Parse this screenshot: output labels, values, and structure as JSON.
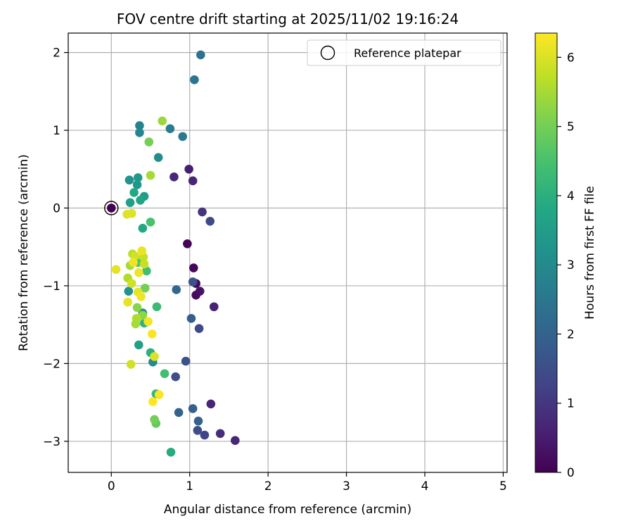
{
  "chart_data": {
    "type": "scatter",
    "title": "FOV centre drift starting at 2025/11/02 19:16:24",
    "xlabel": "Angular distance from reference (arcmin)",
    "ylabel": "Rotation from reference (arcmin)",
    "xlim": [
      -0.55,
      5.05
    ],
    "ylim": [
      -3.4,
      2.25
    ],
    "xticks": [
      0,
      1,
      2,
      3,
      4,
      5
    ],
    "xtick_labels": [
      "0",
      "1",
      "2",
      "3",
      "4",
      "5"
    ],
    "yticks": [
      2,
      1,
      0,
      -1,
      -2,
      -3
    ],
    "ytick_labels": [
      "2",
      "1",
      "0",
      "−1",
      "−2",
      "−3"
    ],
    "grid": true,
    "legend": {
      "label": "Reference platepar",
      "position": "top-right"
    },
    "reference_point": {
      "x": 0,
      "y": 0,
      "c": 0
    },
    "colorbar": {
      "label": "Hours from first FF file",
      "range": [
        0,
        6.35
      ],
      "ticks": [
        0,
        1,
        2,
        3,
        4,
        5,
        6
      ],
      "tick_labels": [
        "0",
        "1",
        "2",
        "3",
        "4",
        "5",
        "6"
      ],
      "colormap": "viridis"
    },
    "points": [
      {
        "x": 0.97,
        "y": -0.46,
        "c": 0.05
      },
      {
        "x": 1.05,
        "y": -0.77,
        "c": 0.1
      },
      {
        "x": 1.08,
        "y": -0.97,
        "c": 0.15
      },
      {
        "x": 1.08,
        "y": -1.12,
        "c": 0.2
      },
      {
        "x": 1.13,
        "y": -1.07,
        "c": 0.3
      },
      {
        "x": 0.99,
        "y": 0.5,
        "c": 0.55
      },
      {
        "x": 1.04,
        "y": 0.35,
        "c": 0.65
      },
      {
        "x": 0.8,
        "y": 0.4,
        "c": 0.7
      },
      {
        "x": 1.31,
        "y": -1.27,
        "c": 0.6
      },
      {
        "x": 1.27,
        "y": -2.52,
        "c": 0.65
      },
      {
        "x": 1.58,
        "y": -2.99,
        "c": 0.7
      },
      {
        "x": 1.39,
        "y": -2.9,
        "c": 0.8
      },
      {
        "x": 1.16,
        "y": -0.05,
        "c": 0.95
      },
      {
        "x": 1.26,
        "y": -0.17,
        "c": 1.4
      },
      {
        "x": 1.12,
        "y": -1.55,
        "c": 1.4
      },
      {
        "x": 1.19,
        "y": -2.92,
        "c": 1.3
      },
      {
        "x": 1.1,
        "y": -2.86,
        "c": 1.5
      },
      {
        "x": 1.04,
        "y": -0.95,
        "c": 1.6
      },
      {
        "x": 0.82,
        "y": -2.17,
        "c": 1.5
      },
      {
        "x": 0.95,
        "y": -1.97,
        "c": 1.55
      },
      {
        "x": 1.02,
        "y": -1.42,
        "c": 1.9
      },
      {
        "x": 1.04,
        "y": -2.58,
        "c": 1.9
      },
      {
        "x": 1.11,
        "y": -2.74,
        "c": 2.0
      },
      {
        "x": 0.86,
        "y": -2.63,
        "c": 2.0
      },
      {
        "x": 0.83,
        "y": -1.05,
        "c": 2.1
      },
      {
        "x": 1.14,
        "y": 1.97,
        "c": 2.4
      },
      {
        "x": 1.06,
        "y": 1.65,
        "c": 2.5
      },
      {
        "x": 0.91,
        "y": 0.92,
        "c": 2.6
      },
      {
        "x": 0.75,
        "y": 1.02,
        "c": 2.7
      },
      {
        "x": 0.36,
        "y": 1.06,
        "c": 2.8
      },
      {
        "x": 0.36,
        "y": 0.97,
        "c": 2.9
      },
      {
        "x": 0.6,
        "y": 0.65,
        "c": 3.1
      },
      {
        "x": 0.23,
        "y": 0.36,
        "c": 3.2
      },
      {
        "x": 0.33,
        "y": 0.3,
        "c": 3.3
      },
      {
        "x": 0.34,
        "y": 0.39,
        "c": 3.4
      },
      {
        "x": 0.42,
        "y": 0.15,
        "c": 3.5
      },
      {
        "x": 0.24,
        "y": 0.07,
        "c": 3.6
      },
      {
        "x": 0.37,
        "y": 0.1,
        "c": 3.7
      },
      {
        "x": 0.29,
        "y": 0.2,
        "c": 3.8
      },
      {
        "x": 0.53,
        "y": -1.98,
        "c": 3.0
      },
      {
        "x": 0.4,
        "y": -1.35,
        "c": 3.1
      },
      {
        "x": 0.22,
        "y": -1.07,
        "c": 3.2
      },
      {
        "x": 0.35,
        "y": -1.76,
        "c": 3.6
      },
      {
        "x": 0.4,
        "y": -0.26,
        "c": 3.8
      },
      {
        "x": 0.76,
        "y": -3.14,
        "c": 3.9
      },
      {
        "x": 0.5,
        "y": -1.86,
        "c": 4.0
      },
      {
        "x": 0.42,
        "y": -1.48,
        "c": 4.1
      },
      {
        "x": 0.57,
        "y": -2.39,
        "c": 4.2
      },
      {
        "x": 0.58,
        "y": -1.27,
        "c": 4.3
      },
      {
        "x": 0.68,
        "y": -2.13,
        "c": 4.4
      },
      {
        "x": 0.45,
        "y": -0.81,
        "c": 4.4
      },
      {
        "x": 0.5,
        "y": -0.18,
        "c": 4.5
      },
      {
        "x": 0.34,
        "y": -0.7,
        "c": 4.6
      },
      {
        "x": 0.57,
        "y": -2.77,
        "c": 4.8
      },
      {
        "x": 0.55,
        "y": -2.72,
        "c": 5.0
      },
      {
        "x": 0.48,
        "y": 0.85,
        "c": 5.0
      },
      {
        "x": 0.43,
        "y": -1.03,
        "c": 5.0
      },
      {
        "x": 0.33,
        "y": -1.28,
        "c": 5.2
      },
      {
        "x": 0.4,
        "y": -1.38,
        "c": 5.3
      },
      {
        "x": 0.65,
        "y": 1.12,
        "c": 5.4
      },
      {
        "x": 0.5,
        "y": 0.42,
        "c": 5.5
      },
      {
        "x": 0.24,
        "y": -0.74,
        "c": 5.5
      },
      {
        "x": 0.32,
        "y": -1.42,
        "c": 5.6
      },
      {
        "x": 0.31,
        "y": -1.49,
        "c": 5.5
      },
      {
        "x": 0.21,
        "y": -0.9,
        "c": 5.6
      },
      {
        "x": 0.27,
        "y": -0.59,
        "c": 5.7
      },
      {
        "x": 0.41,
        "y": -0.63,
        "c": 5.8
      },
      {
        "x": 0.42,
        "y": -0.72,
        "c": 5.8
      },
      {
        "x": 0.3,
        "y": -0.62,
        "c": 5.9
      },
      {
        "x": 0.26,
        "y": -0.97,
        "c": 5.9
      },
      {
        "x": 0.25,
        "y": -2.01,
        "c": 5.9
      },
      {
        "x": 0.55,
        "y": -1.91,
        "c": 6.0
      },
      {
        "x": 0.26,
        "y": -0.07,
        "c": 6.0
      },
      {
        "x": 0.2,
        "y": -0.08,
        "c": 6.05
      },
      {
        "x": 0.06,
        "y": -0.79,
        "c": 6.1
      },
      {
        "x": 0.21,
        "y": -1.21,
        "c": 6.1
      },
      {
        "x": 0.34,
        "y": -1.08,
        "c": 6.1
      },
      {
        "x": 0.39,
        "y": -0.55,
        "c": 6.15
      },
      {
        "x": 0.35,
        "y": -0.83,
        "c": 6.2
      },
      {
        "x": 0.38,
        "y": -1.14,
        "c": 6.2
      },
      {
        "x": 0.28,
        "y": -0.7,
        "c": 6.2
      },
      {
        "x": 0.47,
        "y": -1.46,
        "c": 6.25
      },
      {
        "x": 0.52,
        "y": -1.62,
        "c": 6.3
      },
      {
        "x": 0.61,
        "y": -2.4,
        "c": 6.3
      },
      {
        "x": 0.53,
        "y": -2.49,
        "c": 6.35
      }
    ]
  },
  "colors": {
    "grid": "#b0b0b0",
    "axes": "#000000",
    "background": "#ffffff"
  }
}
